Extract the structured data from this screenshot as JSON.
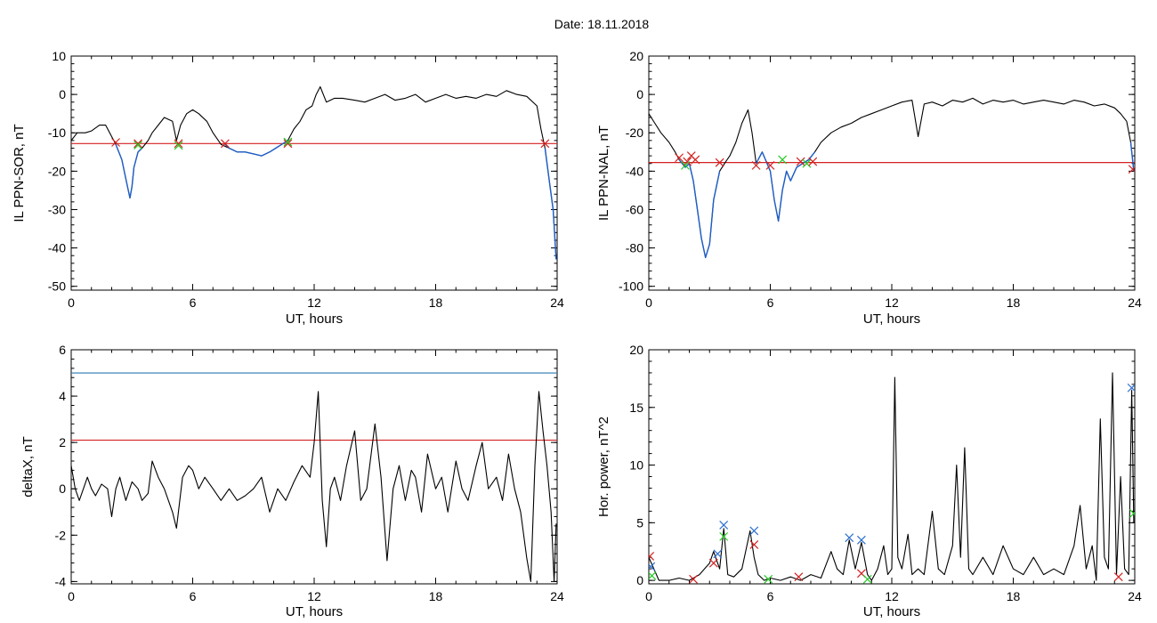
{
  "header": {
    "title": "Date:  18.11.2018"
  },
  "colors": {
    "trace": "#000000",
    "highlight": "#1f5fc8",
    "threshold_red": "#d42020",
    "threshold_blue": "#2a78b0",
    "marker_red": "#d42020",
    "marker_green": "#22cc22",
    "marker_blue": "#2a6fd0"
  },
  "chart_data": [
    {
      "id": "p1",
      "type": "line",
      "xlabel": "UT, hours",
      "ylabel": "IL PPN-SOR, nT",
      "xlim": [
        0,
        24
      ],
      "ylim": [
        -51,
        10
      ],
      "xticks": [
        0,
        6,
        12,
        18,
        24
      ],
      "yticks": [
        -50,
        -40,
        -30,
        -20,
        -10,
        0,
        10
      ],
      "threshold_lines": [
        {
          "y": -12.8,
          "color": "red"
        }
      ],
      "series": [
        {
          "role": "trace",
          "x": [
            0,
            0.3,
            0.7,
            1,
            1.4,
            1.7,
            2,
            2.2,
            2.5,
            2.7,
            2.9,
            3.0,
            3.1,
            3.3,
            3.5,
            3.8,
            4,
            4.3,
            4.6,
            5,
            5.2,
            5.4,
            5.7,
            6,
            6.3,
            6.7,
            7,
            7.4,
            7.8,
            8.2,
            8.6,
            9,
            9.4,
            9.8,
            10.1,
            10.4,
            10.7,
            11,
            11.3,
            11.6,
            11.9,
            12.1,
            12.3,
            12.6,
            13,
            13.4,
            14,
            14.5,
            15,
            15.5,
            16,
            16.5,
            17,
            17.5,
            18,
            18.5,
            19,
            19.5,
            20,
            20.5,
            21,
            21.5,
            22,
            22.5,
            23,
            23.2,
            23.4,
            23.6,
            23.8,
            23.95
          ],
          "y": [
            -12,
            -10,
            -10,
            -9.5,
            -8,
            -8,
            -11,
            -13,
            -17,
            -22,
            -27,
            -24,
            -19,
            -15,
            -14,
            -12,
            -10,
            -8,
            -6,
            -7,
            -12,
            -8,
            -5,
            -4,
            -5,
            -7,
            -10,
            -13,
            -14,
            -15,
            -15,
            -15.5,
            -16,
            -15,
            -14,
            -13,
            -12,
            -9,
            -7,
            -4,
            -3,
            0,
            2,
            -2,
            -1,
            -1,
            -1.5,
            -2,
            -1,
            0,
            -1.5,
            -1,
            0,
            -2,
            -1,
            0,
            -1,
            -0.5,
            -1,
            0,
            -0.5,
            1,
            0,
            -0.5,
            -3,
            -9,
            -14,
            -22,
            -30,
            -43
          ]
        },
        {
          "role": "highlight",
          "x": [
            2.2,
            2.5,
            2.7,
            2.9,
            3.0,
            3.1,
            3.3,
            3.5
          ],
          "y": [
            -13,
            -17,
            -22,
            -27,
            -24,
            -19,
            -15,
            -14
          ]
        },
        {
          "role": "highlight",
          "x": [
            7.6,
            7.8,
            8.2,
            8.6,
            9,
            9.4,
            9.8,
            10.1,
            10.4,
            10.7
          ],
          "y": [
            -13,
            -14,
            -15,
            -15,
            -15.5,
            -16,
            -15,
            -14,
            -13,
            -12
          ]
        },
        {
          "role": "highlight",
          "x": [
            23.4,
            23.6,
            23.8,
            23.95
          ],
          "y": [
            -14,
            -22,
            -30,
            -43
          ]
        }
      ],
      "markers": [
        {
          "x": 2.2,
          "y": -12.5,
          "color": "red"
        },
        {
          "x": 3.3,
          "y": -12.8,
          "color": "red"
        },
        {
          "x": 3.3,
          "y": -13.2,
          "color": "green"
        },
        {
          "x": 5.3,
          "y": -12.8,
          "color": "red"
        },
        {
          "x": 5.3,
          "y": -13.3,
          "color": "green"
        },
        {
          "x": 7.6,
          "y": -12.8,
          "color": "red"
        },
        {
          "x": 10.7,
          "y": -12.8,
          "color": "red"
        },
        {
          "x": 10.7,
          "y": -12.4,
          "color": "green"
        },
        {
          "x": 23.4,
          "y": -12.8,
          "color": "red"
        }
      ]
    },
    {
      "id": "p2",
      "type": "line",
      "xlabel": "UT, hours",
      "ylabel": "IL PPN-NAL, nT",
      "xlim": [
        0,
        24
      ],
      "ylim": [
        -102,
        20
      ],
      "xticks": [
        0,
        6,
        12,
        18,
        24
      ],
      "yticks": [
        -100,
        -80,
        -60,
        -40,
        -20,
        0,
        20
      ],
      "threshold_lines": [
        {
          "y": -35.5,
          "color": "red"
        }
      ],
      "series": [
        {
          "role": "trace",
          "x": [
            0,
            0.3,
            0.6,
            1,
            1.3,
            1.5,
            1.8,
            2,
            2.2,
            2.4,
            2.6,
            2.8,
            3,
            3.2,
            3.5,
            3.8,
            4,
            4.3,
            4.6,
            4.9,
            5.1,
            5.3,
            5.6,
            5.8,
            6,
            6.2,
            6.4,
            6.6,
            6.8,
            7,
            7.3,
            7.6,
            7.9,
            8.2,
            8.5,
            9,
            9.5,
            10,
            10.5,
            11,
            11.5,
            12,
            12.5,
            13,
            13.3,
            13.6,
            14,
            14.5,
            15,
            15.5,
            16,
            16.5,
            17,
            17.5,
            18,
            18.5,
            19,
            19.5,
            20,
            20.5,
            21,
            21.5,
            22,
            22.5,
            23,
            23.3,
            23.6,
            23.8,
            23.95
          ],
          "y": [
            -10,
            -15,
            -20,
            -25,
            -30,
            -34,
            -38,
            -36,
            -45,
            -60,
            -75,
            -85,
            -78,
            -55,
            -40,
            -35,
            -32,
            -25,
            -15,
            -8,
            -20,
            -36,
            -30,
            -35,
            -40,
            -55,
            -66,
            -50,
            -40,
            -45,
            -38,
            -36,
            -34,
            -30,
            -25,
            -20,
            -17,
            -15,
            -12,
            -10,
            -8,
            -6,
            -4,
            -3,
            -22,
            -5,
            -4,
            -6,
            -3,
            -4,
            -2,
            -5,
            -3,
            -4,
            -3,
            -5,
            -4,
            -3,
            -4,
            -5,
            -3,
            -4,
            -6,
            -5,
            -7,
            -10,
            -14,
            -25,
            -40
          ]
        },
        {
          "role": "highlight",
          "x": [
            1.5,
            1.8,
            2,
            2.2,
            2.4,
            2.6,
            2.8,
            3,
            3.2,
            3.5
          ],
          "y": [
            -34,
            -38,
            -36,
            -45,
            -60,
            -75,
            -85,
            -78,
            -55,
            -40
          ]
        },
        {
          "role": "highlight",
          "x": [
            5.3,
            5.6,
            5.8,
            6,
            6.2,
            6.4,
            6.6,
            6.8,
            7,
            7.3,
            7.6,
            7.9,
            8.2
          ],
          "y": [
            -36,
            -30,
            -35,
            -40,
            -55,
            -66,
            -50,
            -40,
            -45,
            -38,
            -36,
            -34,
            -30
          ]
        },
        {
          "role": "highlight",
          "x": [
            23.8,
            23.95
          ],
          "y": [
            -25,
            -40
          ]
        }
      ],
      "markers": [
        {
          "x": 1.5,
          "y": -33,
          "color": "red"
        },
        {
          "x": 1.9,
          "y": -35,
          "color": "red"
        },
        {
          "x": 2.1,
          "y": -32,
          "color": "red"
        },
        {
          "x": 2.3,
          "y": -34,
          "color": "red"
        },
        {
          "x": 1.8,
          "y": -37,
          "color": "green"
        },
        {
          "x": 3.5,
          "y": -35.5,
          "color": "red"
        },
        {
          "x": 5.3,
          "y": -37,
          "color": "red"
        },
        {
          "x": 6.0,
          "y": -37,
          "color": "red"
        },
        {
          "x": 6.6,
          "y": -34,
          "color": "green"
        },
        {
          "x": 7.5,
          "y": -35,
          "color": "red"
        },
        {
          "x": 7.8,
          "y": -36,
          "color": "green"
        },
        {
          "x": 8.1,
          "y": -35,
          "color": "red"
        },
        {
          "x": 23.9,
          "y": -39,
          "color": "red"
        }
      ]
    },
    {
      "id": "p3",
      "type": "line",
      "xlabel": "UT, hours",
      "ylabel": "deltaX, nT",
      "xlim": [
        0,
        24
      ],
      "ylim": [
        -4.1,
        6
      ],
      "xticks": [
        0,
        6,
        12,
        18,
        24
      ],
      "yticks": [
        -4,
        -2,
        0,
        2,
        4,
        6
      ],
      "threshold_lines": [
        {
          "y": 5.0,
          "color": "blue"
        },
        {
          "y": 2.1,
          "color": "red"
        }
      ],
      "series": [
        {
          "role": "trace",
          "x": [
            0,
            0.2,
            0.4,
            0.6,
            0.8,
            1,
            1.2,
            1.5,
            1.8,
            2,
            2.2,
            2.4,
            2.7,
            3,
            3.3,
            3.5,
            3.8,
            4,
            4.3,
            4.6,
            5,
            5.2,
            5.5,
            5.8,
            6,
            6.3,
            6.6,
            7,
            7.4,
            7.8,
            8.2,
            8.6,
            9,
            9.4,
            9.8,
            10.2,
            10.6,
            11,
            11.4,
            11.8,
            12,
            12.2,
            12.4,
            12.6,
            12.8,
            13,
            13.3,
            13.6,
            14,
            14.3,
            14.6,
            15,
            15.3,
            15.6,
            15.9,
            16.2,
            16.5,
            16.8,
            17,
            17.3,
            17.6,
            18,
            18.3,
            18.6,
            19,
            19.3,
            19.6,
            20,
            20.3,
            20.6,
            21,
            21.3,
            21.6,
            21.9,
            22.2,
            22.5,
            22.7,
            22.9,
            23.1,
            23.3,
            23.5,
            23.7,
            23.85,
            23.95
          ],
          "y": [
            1,
            0,
            -0.5,
            0,
            0.5,
            0,
            -0.3,
            0.2,
            0,
            -1.2,
            0,
            0.5,
            -0.5,
            0.3,
            0,
            -0.5,
            -0.2,
            1.2,
            0.5,
            0,
            -1,
            -1.7,
            0.5,
            1,
            0.8,
            0,
            0.5,
            0,
            -0.5,
            0,
            -0.5,
            -0.3,
            0,
            0.5,
            -1,
            0,
            -0.5,
            0.3,
            1,
            0.5,
            2,
            4.2,
            -0.5,
            -2.5,
            0,
            0.5,
            -0.5,
            1,
            2.5,
            -0.5,
            0,
            2.8,
            0.5,
            -3.1,
            0,
            1,
            -0.5,
            0.8,
            0.5,
            -1,
            1.5,
            0,
            0.5,
            -1,
            1.2,
            0,
            -0.5,
            1,
            2,
            0,
            0.5,
            -0.5,
            1.5,
            0,
            -1,
            -3,
            -4,
            1,
            4.2,
            2.5,
            1,
            -1,
            -4,
            -1.5
          ]
        }
      ],
      "markers": []
    },
    {
      "id": "p4",
      "type": "line",
      "xlabel": "UT, hours",
      "ylabel": "Hor. power, nT^2",
      "xlim": [
        0,
        24
      ],
      "ylim": [
        -0.3,
        20
      ],
      "xticks": [
        0,
        6,
        12,
        18,
        24
      ],
      "yticks": [
        0,
        5,
        10,
        15,
        20
      ],
      "threshold_lines": [],
      "series": [
        {
          "role": "trace",
          "x": [
            0,
            0.5,
            1,
            1.5,
            2,
            2.5,
            3,
            3.2,
            3.5,
            3.7,
            3.9,
            4.2,
            4.6,
            5,
            5.2,
            5.4,
            5.7,
            6,
            6.5,
            7,
            7.5,
            8,
            8.5,
            9,
            9.3,
            9.6,
            9.9,
            10.2,
            10.5,
            10.8,
            11,
            11.3,
            11.6,
            11.8,
            12,
            12.15,
            12.3,
            12.5,
            12.8,
            13,
            13.3,
            13.6,
            14,
            14.3,
            14.6,
            15,
            15.2,
            15.4,
            15.6,
            15.8,
            16,
            16.5,
            17,
            17.5,
            18,
            18.5,
            19,
            19.5,
            20,
            20.5,
            21,
            21.3,
            21.6,
            21.9,
            22.1,
            22.3,
            22.5,
            22.7,
            22.9,
            23.1,
            23.3,
            23.5,
            23.7,
            23.85,
            23.95
          ],
          "y": [
            2,
            0,
            0,
            0.2,
            0,
            0.5,
            1.5,
            2.5,
            1,
            4.5,
            0.5,
            0.3,
            1,
            4.3,
            2,
            0.5,
            0,
            0.2,
            0,
            0.3,
            0,
            0.5,
            0.2,
            2.5,
            1,
            0.5,
            3.5,
            1,
            3.3,
            0.5,
            0,
            1,
            3,
            0.5,
            1,
            17.6,
            2,
            1,
            4,
            0.5,
            1,
            0.5,
            6,
            1,
            0.5,
            3,
            10,
            2,
            11.5,
            1,
            0.5,
            2,
            0.5,
            3,
            1,
            0.5,
            2,
            0.5,
            1,
            0.5,
            3,
            6.5,
            1,
            3,
            0,
            14,
            2,
            1,
            18,
            0.5,
            9,
            1,
            0.5,
            16.5,
            5
          ]
        }
      ],
      "markers": [
        {
          "x": 0.05,
          "y": 2.1,
          "color": "red"
        },
        {
          "x": 0.1,
          "y": 1.2,
          "color": "blue"
        },
        {
          "x": 0.15,
          "y": 0.4,
          "color": "green"
        },
        {
          "x": 3.2,
          "y": 1.5,
          "color": "red"
        },
        {
          "x": 3.4,
          "y": 2.3,
          "color": "blue"
        },
        {
          "x": 3.7,
          "y": 4.8,
          "color": "blue"
        },
        {
          "x": 3.7,
          "y": 3.8,
          "color": "green"
        },
        {
          "x": 5.2,
          "y": 4.3,
          "color": "blue"
        },
        {
          "x": 5.2,
          "y": 3.1,
          "color": "red"
        },
        {
          "x": 5.9,
          "y": 0.1,
          "color": "green"
        },
        {
          "x": 7.4,
          "y": 0.3,
          "color": "red"
        },
        {
          "x": 9.9,
          "y": 3.7,
          "color": "blue"
        },
        {
          "x": 10.5,
          "y": 3.5,
          "color": "blue"
        },
        {
          "x": 10.5,
          "y": 0.6,
          "color": "red"
        },
        {
          "x": 10.8,
          "y": 0.1,
          "color": "green"
        },
        {
          "x": 23.2,
          "y": 0.3,
          "color": "red"
        },
        {
          "x": 23.85,
          "y": 16.7,
          "color": "blue"
        },
        {
          "x": 23.95,
          "y": 5.8,
          "color": "green"
        },
        {
          "x": 2.2,
          "y": 0.1,
          "color": "red"
        }
      ]
    }
  ]
}
